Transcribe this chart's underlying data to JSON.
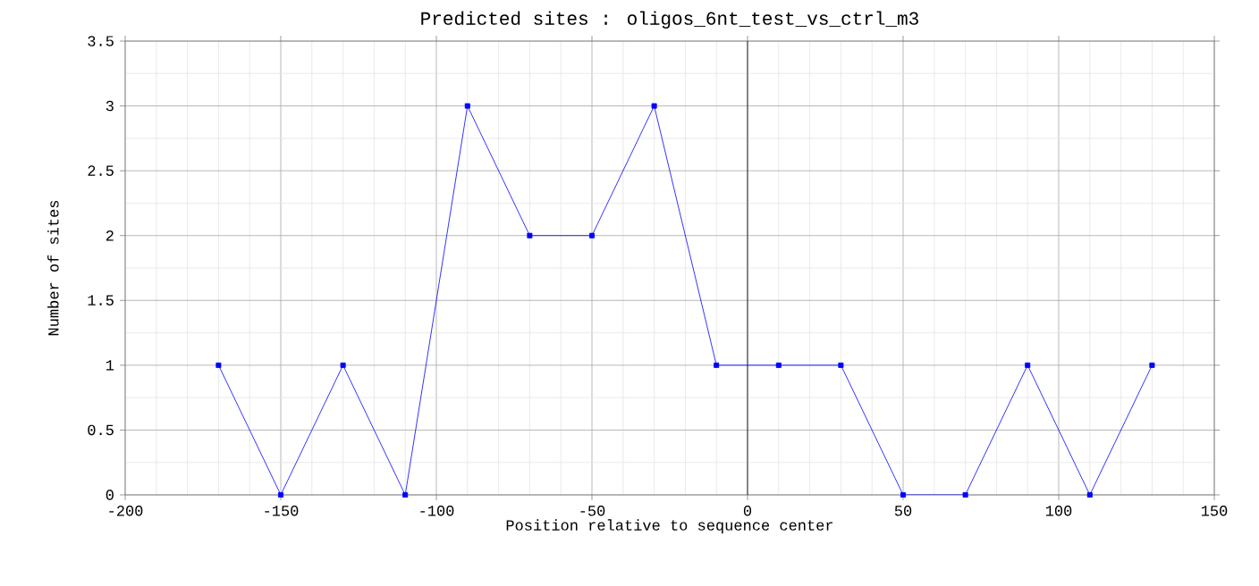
{
  "chart_data": {
    "type": "line",
    "title": "Predicted sites : oligos_6nt_test_vs_ctrl_m3",
    "xlabel": "Position relative to sequence center",
    "ylabel": "Number of sites",
    "x": [
      -170,
      -150,
      -130,
      -110,
      -90,
      -70,
      -50,
      -30,
      -10,
      10,
      30,
      50,
      70,
      90,
      110,
      130
    ],
    "series": [
      {
        "color": "#0000ff",
        "values": [
          1,
          0,
          1,
          0,
          3,
          2,
          2,
          3,
          1,
          1,
          1,
          0,
          0,
          1,
          0,
          1
        ]
      }
    ],
    "xlim": [
      -200,
      150
    ],
    "xticks": [
      -200,
      -150,
      -100,
      -50,
      0,
      50,
      100,
      150
    ],
    "ylim": [
      0,
      3.5
    ],
    "yticks": [
      0,
      0.5,
      1,
      1.5,
      2,
      2.5,
      3,
      3.5
    ],
    "ref_lines": [
      {
        "axis": "x",
        "value": 0,
        "color": "#000000"
      }
    ],
    "grid": true,
    "marker": "square",
    "line_style": "solid"
  }
}
